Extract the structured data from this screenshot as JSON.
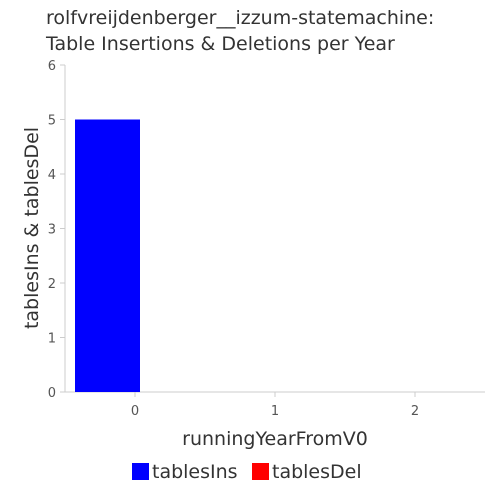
{
  "chart_data": {
    "type": "bar",
    "title_lines": [
      "rolfvreijdenberger__izzum-statemachine:",
      "Table Insertions & Deletions per Year"
    ],
    "xlabel": "runningYearFromV0",
    "ylabel": "tablesIns & tablesDel",
    "categories": [
      "0",
      "1",
      "2"
    ],
    "ylim": [
      0,
      6
    ],
    "yticks": [
      "0",
      "1",
      "2",
      "3",
      "4",
      "5",
      "6"
    ],
    "series": [
      {
        "name": "tablesIns",
        "color": "#0000ff",
        "values": [
          5,
          0,
          0
        ]
      },
      {
        "name": "tablesDel",
        "color": "#ff0000",
        "values": [
          0,
          0,
          0
        ]
      }
    ],
    "legend_position": "bottom-center"
  }
}
